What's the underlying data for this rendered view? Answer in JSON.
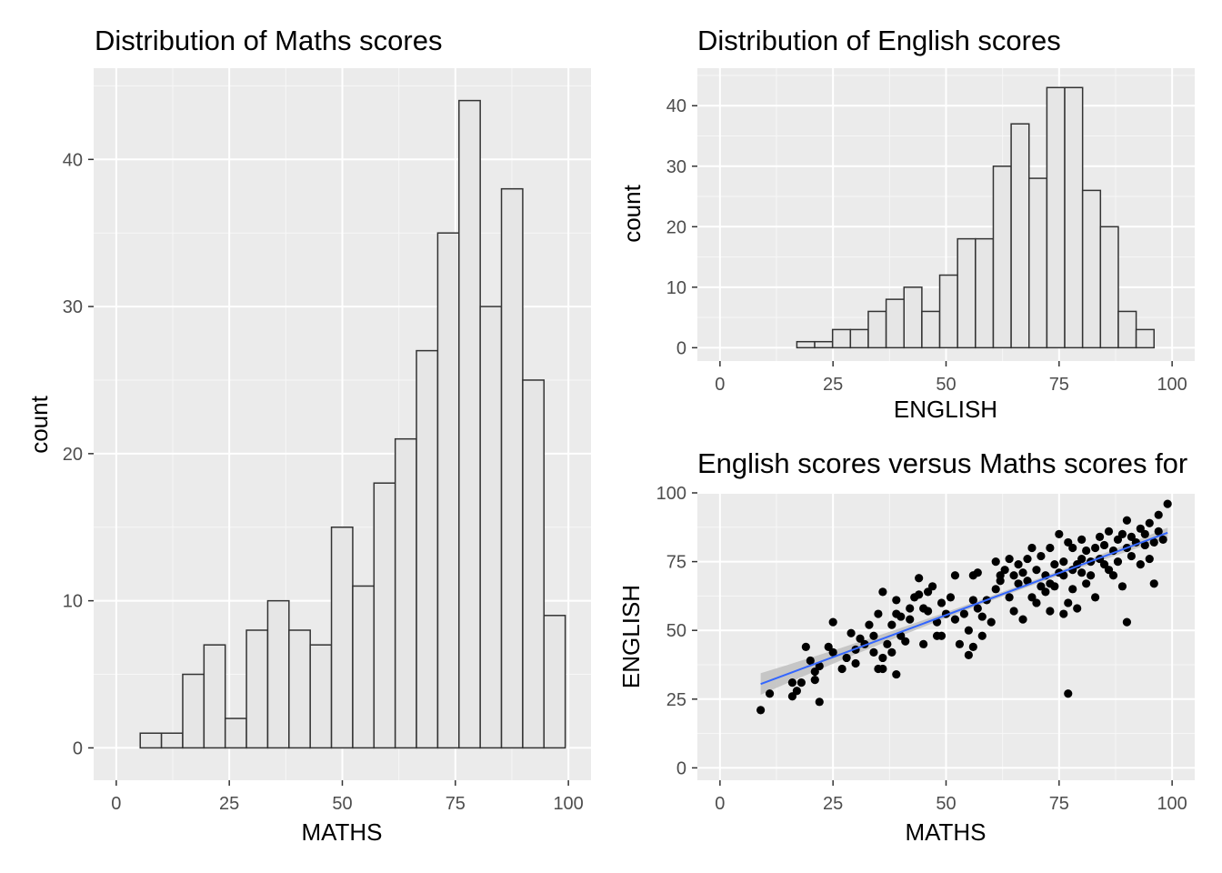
{
  "chart_data": [
    {
      "type": "bar",
      "subtype": "histogram",
      "title": "Distribution of Maths scores",
      "xlabel": "MATHS",
      "ylabel": "count",
      "xlim": [
        -5,
        105
      ],
      "ylim": [
        -2.2,
        46.2
      ],
      "xticks": [
        0,
        25,
        50,
        75,
        100
      ],
      "yticks": [
        0,
        10,
        20,
        30,
        40
      ],
      "bin_width": 4.7,
      "bin_start": 5.3,
      "counts": [
        1,
        1,
        5,
        7,
        2,
        8,
        10,
        8,
        7,
        15,
        11,
        18,
        21,
        27,
        35,
        44,
        30,
        38,
        25,
        9
      ],
      "bar_fill": "#e6e6e6",
      "bar_stroke": "#333333",
      "panel_background": "#ebebeb",
      "grid": true
    },
    {
      "type": "bar",
      "subtype": "histogram",
      "title": "Distribution of English scores",
      "xlabel": "ENGLISH",
      "ylabel": "count",
      "xlim": [
        -5,
        105
      ],
      "ylim": [
        -2.2,
        46.2
      ],
      "xticks": [
        0,
        25,
        50,
        75,
        100
      ],
      "yticks": [
        0,
        10,
        20,
        30,
        40
      ],
      "bin_width": 3.95,
      "bin_start": 17.0,
      "counts": [
        1,
        1,
        3,
        3,
        6,
        8,
        10,
        6,
        12,
        18,
        18,
        30,
        37,
        28,
        43,
        43,
        26,
        20,
        6,
        3
      ],
      "bar_fill": "#e6e6e6",
      "bar_stroke": "#333333",
      "panel_background": "#ebebeb",
      "grid": true
    },
    {
      "type": "scatter",
      "title": "English scores versus Maths scores for",
      "xlabel": "MATHS",
      "ylabel": "ENGLISH",
      "xlim": [
        -5,
        105
      ],
      "ylim": [
        -4.5,
        100
      ],
      "xticks": [
        0,
        25,
        50,
        75,
        100
      ],
      "yticks": [
        0,
        25,
        50,
        75,
        100
      ],
      "points": [
        [
          9,
          21
        ],
        [
          11,
          27
        ],
        [
          16,
          26
        ],
        [
          16,
          31
        ],
        [
          17,
          28
        ],
        [
          18,
          31
        ],
        [
          19,
          44
        ],
        [
          20,
          39
        ],
        [
          21,
          32
        ],
        [
          21,
          35
        ],
        [
          22,
          24
        ],
        [
          22,
          37
        ],
        [
          24,
          44
        ],
        [
          25,
          53
        ],
        [
          25,
          42
        ],
        [
          27,
          36
        ],
        [
          28,
          40
        ],
        [
          29,
          49
        ],
        [
          30,
          38
        ],
        [
          30,
          43
        ],
        [
          31,
          47
        ],
        [
          32,
          45
        ],
        [
          33,
          52
        ],
        [
          34,
          42
        ],
        [
          34,
          48
        ],
        [
          35,
          36
        ],
        [
          35,
          56
        ],
        [
          36,
          36
        ],
        [
          36,
          64
        ],
        [
          36,
          40
        ],
        [
          37,
          45
        ],
        [
          38,
          42
        ],
        [
          38,
          52
        ],
        [
          39,
          56
        ],
        [
          39,
          61
        ],
        [
          39,
          34
        ],
        [
          40,
          55
        ],
        [
          40,
          48
        ],
        [
          41,
          46
        ],
        [
          42,
          54
        ],
        [
          42,
          58
        ],
        [
          43,
          62
        ],
        [
          44,
          69
        ],
        [
          44,
          63
        ],
        [
          45,
          58
        ],
        [
          45,
          45
        ],
        [
          46,
          57
        ],
        [
          46,
          64
        ],
        [
          47,
          66
        ],
        [
          48,
          48
        ],
        [
          48,
          53
        ],
        [
          49,
          60
        ],
        [
          49,
          48
        ],
        [
          50,
          56
        ],
        [
          51,
          62
        ],
        [
          52,
          70
        ],
        [
          52,
          54
        ],
        [
          53,
          45
        ],
        [
          54,
          56
        ],
        [
          55,
          50
        ],
        [
          55,
          41
        ],
        [
          56,
          61
        ],
        [
          56,
          70
        ],
        [
          56,
          44
        ],
        [
          57,
          58
        ],
        [
          57,
          71
        ],
        [
          58,
          48
        ],
        [
          58,
          55
        ],
        [
          59,
          61
        ],
        [
          60,
          53
        ],
        [
          61,
          65
        ],
        [
          61,
          75
        ],
        [
          62,
          70
        ],
        [
          62,
          68
        ],
        [
          63,
          72
        ],
        [
          64,
          62
        ],
        [
          64,
          76
        ],
        [
          65,
          70
        ],
        [
          65,
          57
        ],
        [
          66,
          74
        ],
        [
          66,
          67
        ],
        [
          67,
          71
        ],
        [
          67,
          54
        ],
        [
          68,
          68
        ],
        [
          68,
          76
        ],
        [
          69,
          80
        ],
        [
          69,
          62
        ],
        [
          70,
          60
        ],
        [
          70,
          72
        ],
        [
          71,
          66
        ],
        [
          71,
          77
        ],
        [
          72,
          70
        ],
        [
          72,
          64
        ],
        [
          73,
          67
        ],
        [
          73,
          57
        ],
        [
          73,
          80
        ],
        [
          74,
          66
        ],
        [
          74,
          74
        ],
        [
          75,
          71
        ],
        [
          75,
          85
        ],
        [
          76,
          75
        ],
        [
          76,
          70
        ],
        [
          76,
          56
        ],
        [
          77,
          82
        ],
        [
          77,
          60
        ],
        [
          77,
          27
        ],
        [
          78,
          72
        ],
        [
          78,
          65
        ],
        [
          78,
          80
        ],
        [
          79,
          74
        ],
        [
          79,
          58
        ],
        [
          80,
          76
        ],
        [
          80,
          71
        ],
        [
          80,
          83
        ],
        [
          81,
          67
        ],
        [
          81,
          79
        ],
        [
          82,
          75
        ],
        [
          82,
          70
        ],
        [
          83,
          80
        ],
        [
          83,
          62
        ],
        [
          84,
          76
        ],
        [
          84,
          84
        ],
        [
          85,
          74
        ],
        [
          85,
          81
        ],
        [
          86,
          72
        ],
        [
          86,
          86
        ],
        [
          87,
          79
        ],
        [
          87,
          70
        ],
        [
          88,
          83
        ],
        [
          88,
          75
        ],
        [
          89,
          85
        ],
        [
          89,
          66
        ],
        [
          90,
          80
        ],
        [
          90,
          90
        ],
        [
          90,
          53
        ],
        [
          91,
          77
        ],
        [
          91,
          84
        ],
        [
          92,
          82
        ],
        [
          93,
          87
        ],
        [
          93,
          74
        ],
        [
          94,
          85
        ],
        [
          94,
          81
        ],
        [
          95,
          89
        ],
        [
          95,
          76
        ],
        [
          96,
          82
        ],
        [
          96,
          67
        ],
        [
          97,
          92
        ],
        [
          97,
          86
        ],
        [
          98,
          83
        ],
        [
          99,
          96
        ]
      ],
      "trend_line": {
        "x": [
          9,
          99
        ],
        "y": [
          30.5,
          85.5
        ],
        "color": "#3366ff"
      },
      "confidence_band_color": "#bfbfbf",
      "point_color": "#000000",
      "panel_background": "#ebebeb",
      "grid": true
    }
  ]
}
